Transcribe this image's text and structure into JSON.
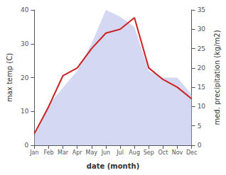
{
  "chart_data": {
    "type": "line",
    "xlabel": "date (month)",
    "ylabel": "max temp (C)",
    "y2label": "med. precipitation (kg/m2)",
    "categories": [
      "Jan",
      "Feb",
      "Mar",
      "Apr",
      "May",
      "Jun",
      "Jul",
      "Aug",
      "Sep",
      "Oct",
      "Nov",
      "Dec"
    ],
    "series": [
      {
        "type": "area",
        "color": "#b0b8e8",
        "values": [
          3,
          12,
          17,
          22,
          30,
          40,
          38,
          35,
          22,
          20,
          20,
          15
        ]
      },
      {
        "type": "line",
        "color": "#cc2222",
        "axis": "y2",
        "values": [
          3,
          10,
          18,
          20,
          25,
          29,
          30,
          33,
          20,
          17,
          15,
          12
        ]
      }
    ],
    "ylim": [
      0,
      40
    ],
    "yticks": [
      0,
      10,
      20,
      30,
      40
    ],
    "y2lim": [
      0,
      35
    ],
    "y2ticks": [
      0,
      5,
      10,
      15,
      20,
      25,
      30,
      35
    ],
    "grid": false
  }
}
